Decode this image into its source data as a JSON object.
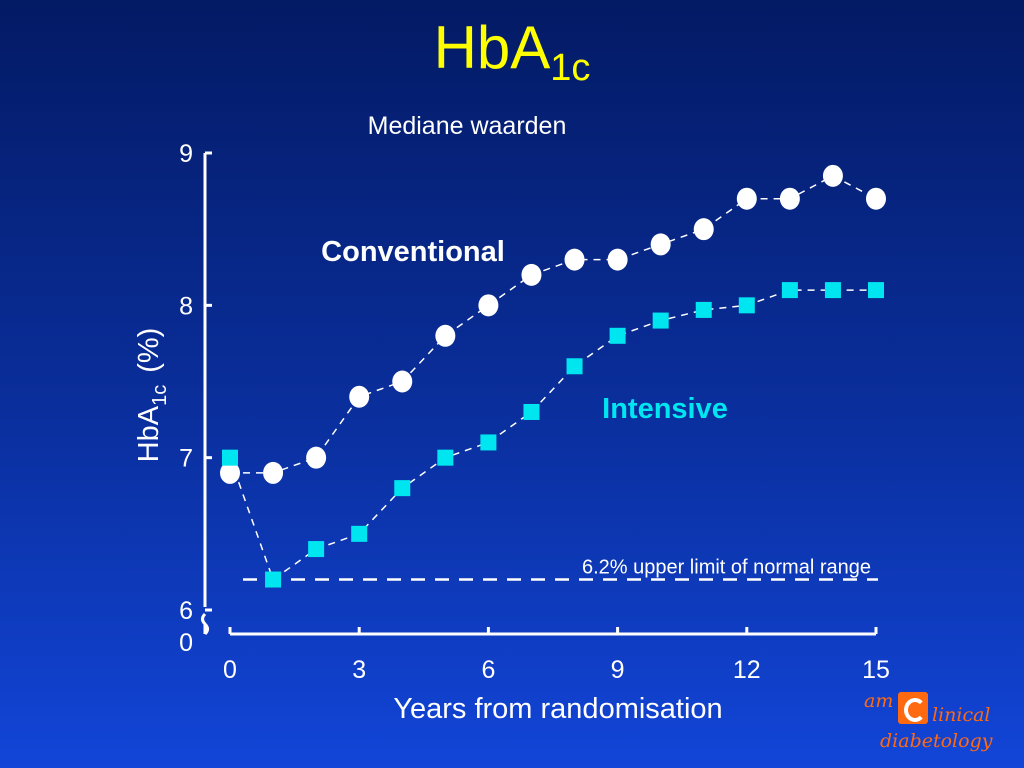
{
  "slide": {
    "title_main": "HbA",
    "title_sub": "1c",
    "subtitle": "Mediane waarden"
  },
  "chart_data": {
    "type": "line",
    "xlabel": "Years from randomisation",
    "ylabel_main": "HbA",
    "ylabel_sub": "1c",
    "ylabel_unit": "(%)",
    "x_ticks": [
      0,
      3,
      6,
      9,
      12,
      15
    ],
    "y_ticks": [
      6,
      7,
      8,
      9
    ],
    "y_break_label": "0",
    "xlim": [
      0,
      15
    ],
    "ylim": [
      6,
      9
    ],
    "y_axis_break": true,
    "grid": false,
    "series": [
      {
        "name": "Conventional",
        "marker": "circle",
        "color": "#ffffff",
        "x": [
          0,
          1,
          2,
          3,
          4,
          5,
          6,
          7,
          8,
          9,
          10,
          11,
          12,
          13,
          14,
          15
        ],
        "values": [
          6.9,
          6.9,
          7.0,
          7.4,
          7.5,
          7.8,
          8.0,
          8.2,
          8.3,
          8.3,
          8.4,
          8.5,
          8.7,
          8.7,
          8.85,
          8.7
        ]
      },
      {
        "name": "Intensive",
        "marker": "square",
        "color": "#00e6f0",
        "x": [
          0,
          1,
          2,
          3,
          4,
          5,
          6,
          7,
          8,
          9,
          10,
          11,
          12,
          13,
          14,
          15
        ],
        "values": [
          7.0,
          6.2,
          6.4,
          6.5,
          6.8,
          7.0,
          7.1,
          7.3,
          7.6,
          7.8,
          7.9,
          7.97,
          8.0,
          8.1,
          8.1,
          8.1
        ]
      }
    ],
    "reference_line": {
      "value": 6.2,
      "label": "6.2% upper limit of normal range"
    }
  },
  "logo": {
    "prefix": "am",
    "word1": "linical",
    "word2": "diabetology",
    "color": "#ff6a10"
  },
  "colors": {
    "background_top": "#031a64",
    "background_bottom": "#1245d8",
    "title": "#ffff00",
    "axis": "#ffffff"
  }
}
